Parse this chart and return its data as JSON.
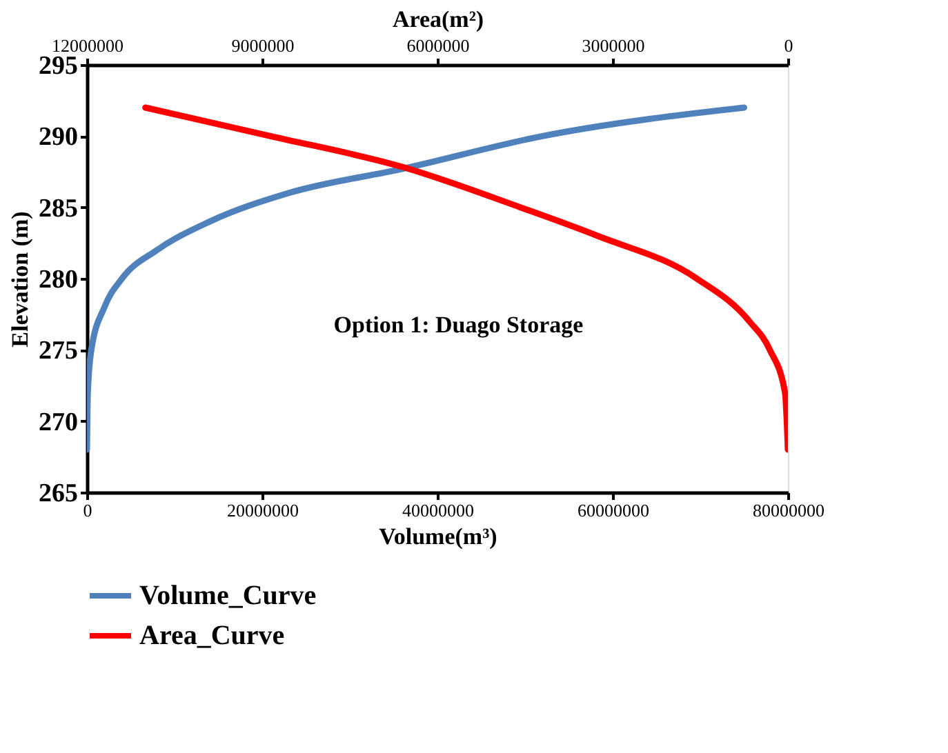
{
  "chart_data": {
    "type": "line",
    "xlabel": "Volume(m³)",
    "x2label": "Area(m²)",
    "ylabel": "Elevation (m)",
    "xlim": [
      0,
      80000000
    ],
    "xticks": [
      0,
      20000000,
      40000000,
      60000000,
      80000000
    ],
    "x2lim": [
      12000000,
      0
    ],
    "x2ticks": [
      12000000,
      9000000,
      6000000,
      3000000,
      0
    ],
    "ylim": [
      265,
      295
    ],
    "yticks": [
      265,
      270,
      275,
      280,
      285,
      290,
      295
    ],
    "grid": false,
    "legend": "bottom",
    "marker": "none",
    "line_style": "solid",
    "annotations": [
      "Option 1: Duago Storage"
    ],
    "series": [
      {
        "name": "Volume_Curve",
        "color": "#4f81bd",
        "x": [
          0,
          100000,
          500000,
          2000000,
          4000000,
          8000000,
          14000000,
          23000000,
          36000000,
          52000000,
          75000000
        ],
        "values": [
          268,
          272,
          275,
          278,
          280,
          282,
          284,
          286,
          287.7,
          290,
          292
        ]
      },
      {
        "name": "Area_Curve",
        "color": "#ff0000",
        "axis": "x2",
        "x": [
          0,
          50000,
          310000,
          660000,
          1560000,
          3260000,
          4580000,
          6570000,
          8860000,
          11000000
        ],
        "values": [
          268,
          272,
          275,
          277,
          280,
          283,
          285,
          287.8,
          290,
          292
        ]
      }
    ]
  }
}
